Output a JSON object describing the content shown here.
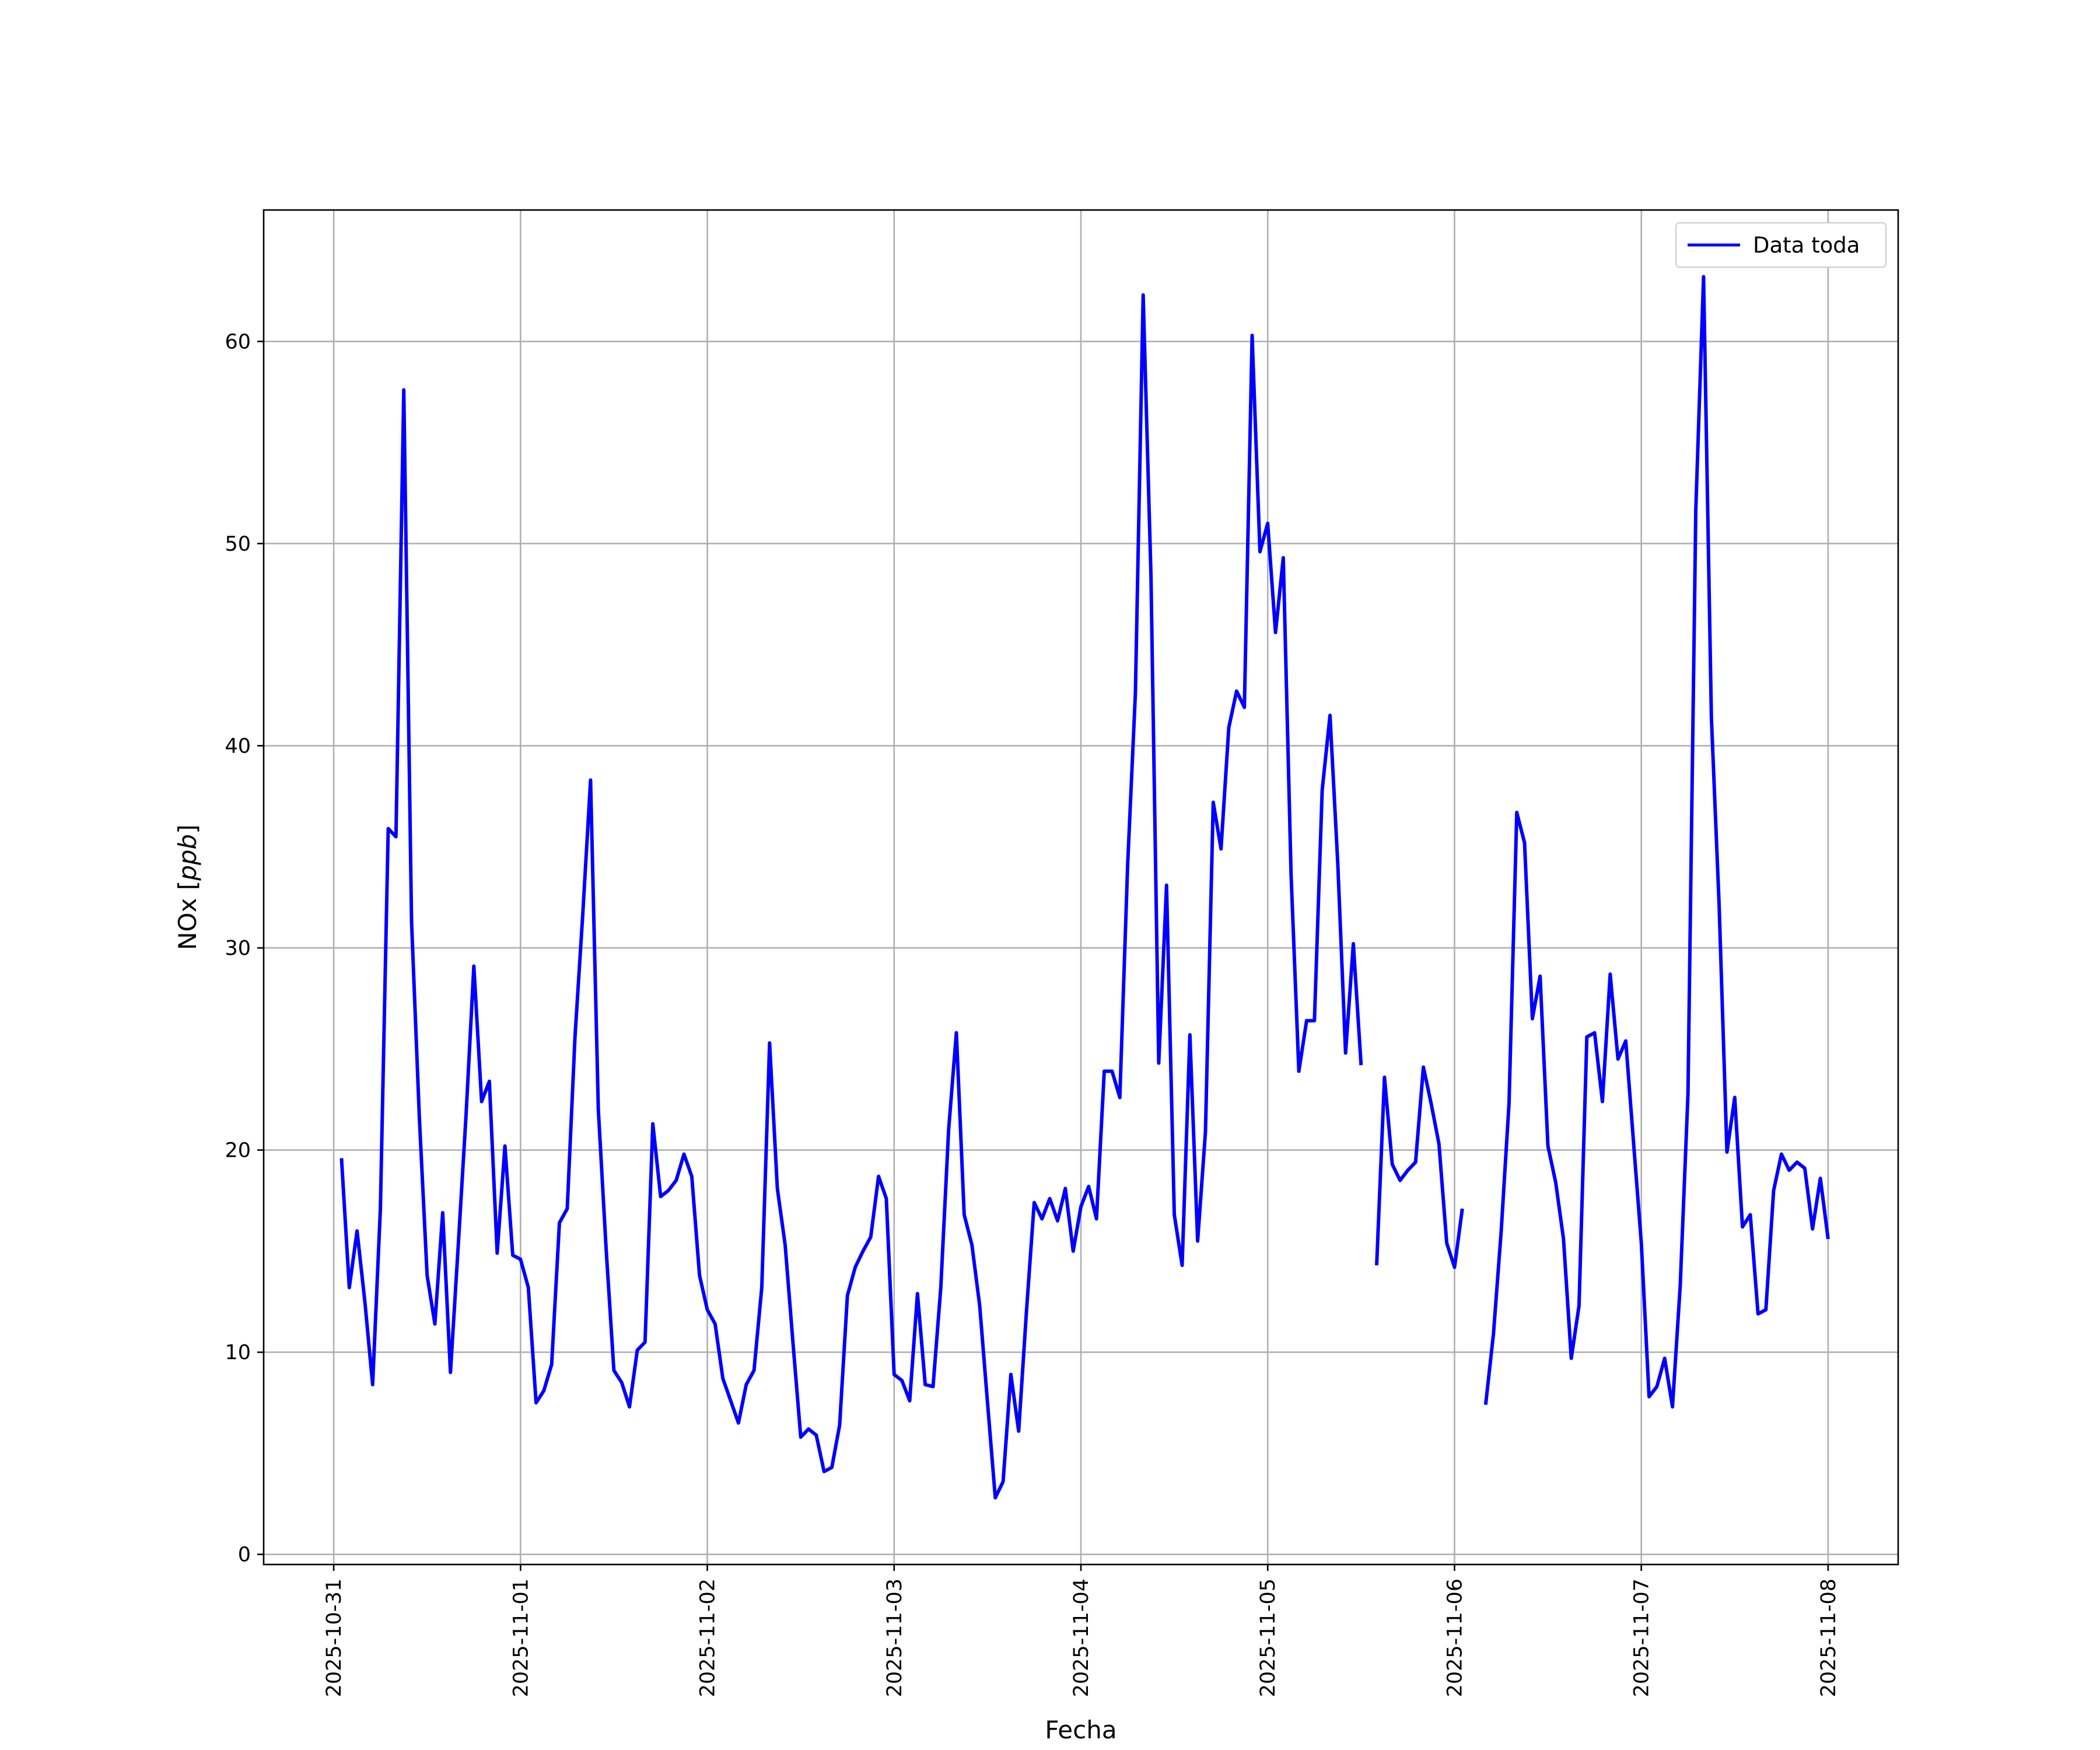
{
  "chart_data": {
    "type": "line",
    "title": "",
    "xlabel": "Fecha",
    "ylabel_main": "NOx",
    "ylabel_unit": "ppb",
    "x_type": "datetime",
    "xlim": [
      "2025-10-30T15:00",
      "2025-11-08T09:00"
    ],
    "ylim": [
      -0.5,
      66.5
    ],
    "x_ticks": [
      "2025-10-31",
      "2025-11-01",
      "2025-11-02",
      "2025-11-03",
      "2025-11-04",
      "2025-11-05",
      "2025-11-06",
      "2025-11-07",
      "2025-11-08"
    ],
    "y_ticks": [
      0,
      10,
      20,
      30,
      40,
      50,
      60
    ],
    "grid": true,
    "legend_position": "upper-right",
    "colors": {
      "series": "#0000ff",
      "grid": "#b0b0b0",
      "axes": "#000000"
    },
    "series": [
      {
        "name": "Data toda",
        "step_hours": 1,
        "start": "2025-10-31T01:00",
        "values": [
          19.6,
          13.2,
          16.0,
          12.5,
          8.4,
          17.1,
          35.9,
          35.5,
          57.6,
          31.3,
          21.6,
          13.8,
          11.4,
          16.9,
          9.0,
          15.3,
          21.7,
          29.1,
          22.4,
          23.4,
          14.9,
          20.2,
          14.8,
          14.6,
          13.2,
          7.5,
          8.1,
          9.4,
          16.4,
          17.1,
          25.6,
          31.7,
          38.3,
          22.0,
          15.1,
          9.1,
          8.5,
          7.3,
          10.1,
          10.5,
          21.3,
          17.7,
          18.0,
          18.5,
          19.8,
          18.7,
          13.8,
          12.1,
          11.4,
          8.7,
          7.6,
          6.5,
          8.4,
          9.1,
          13.2,
          25.3,
          18.1,
          15.3,
          10.5,
          5.8,
          6.2,
          5.9,
          4.1,
          4.3,
          6.4,
          12.8,
          14.2,
          15.0,
          15.7,
          18.7,
          17.6,
          8.9,
          8.6,
          7.6,
          12.9,
          8.4,
          8.3,
          13.2,
          21.0,
          25.8,
          16.8,
          15.3,
          12.3,
          7.5,
          2.8,
          3.6,
          8.9,
          6.1,
          12.0,
          17.4,
          16.6,
          17.6,
          16.5,
          18.1,
          15.0,
          17.2,
          18.2,
          16.6,
          23.9,
          23.9,
          22.6,
          34.1,
          42.6,
          62.3,
          48.4,
          24.3,
          33.1,
          16.8,
          14.3,
          25.7,
          15.5,
          20.9,
          37.2,
          34.9,
          40.9,
          42.7,
          41.9,
          60.3,
          49.6,
          51.0,
          45.6,
          49.3,
          33.6,
          23.9,
          26.4,
          26.4,
          37.8,
          41.5,
          34.2,
          24.8,
          30.2,
          24.2,
          null,
          14.3,
          23.6,
          19.3,
          18.5,
          19.0,
          19.4,
          24.1,
          22.3,
          20.3,
          15.4,
          14.2,
          17.1,
          null,
          null,
          7.4,
          10.9,
          16.0,
          22.3,
          36.7,
          35.2,
          26.5,
          28.6,
          20.2,
          18.4,
          15.6,
          9.7,
          12.3,
          25.6,
          25.8,
          22.4,
          28.7,
          24.5,
          25.4,
          20.4,
          15.4,
          7.8,
          8.3,
          9.7,
          7.3,
          13.3,
          22.8,
          51.7,
          63.2,
          41.4,
          32.1,
          19.9,
          22.6,
          16.2,
          16.8,
          11.9,
          12.1,
          18.0,
          19.8,
          19.0,
          19.4,
          19.1,
          16.1,
          18.6,
          15.6
        ]
      }
    ]
  }
}
